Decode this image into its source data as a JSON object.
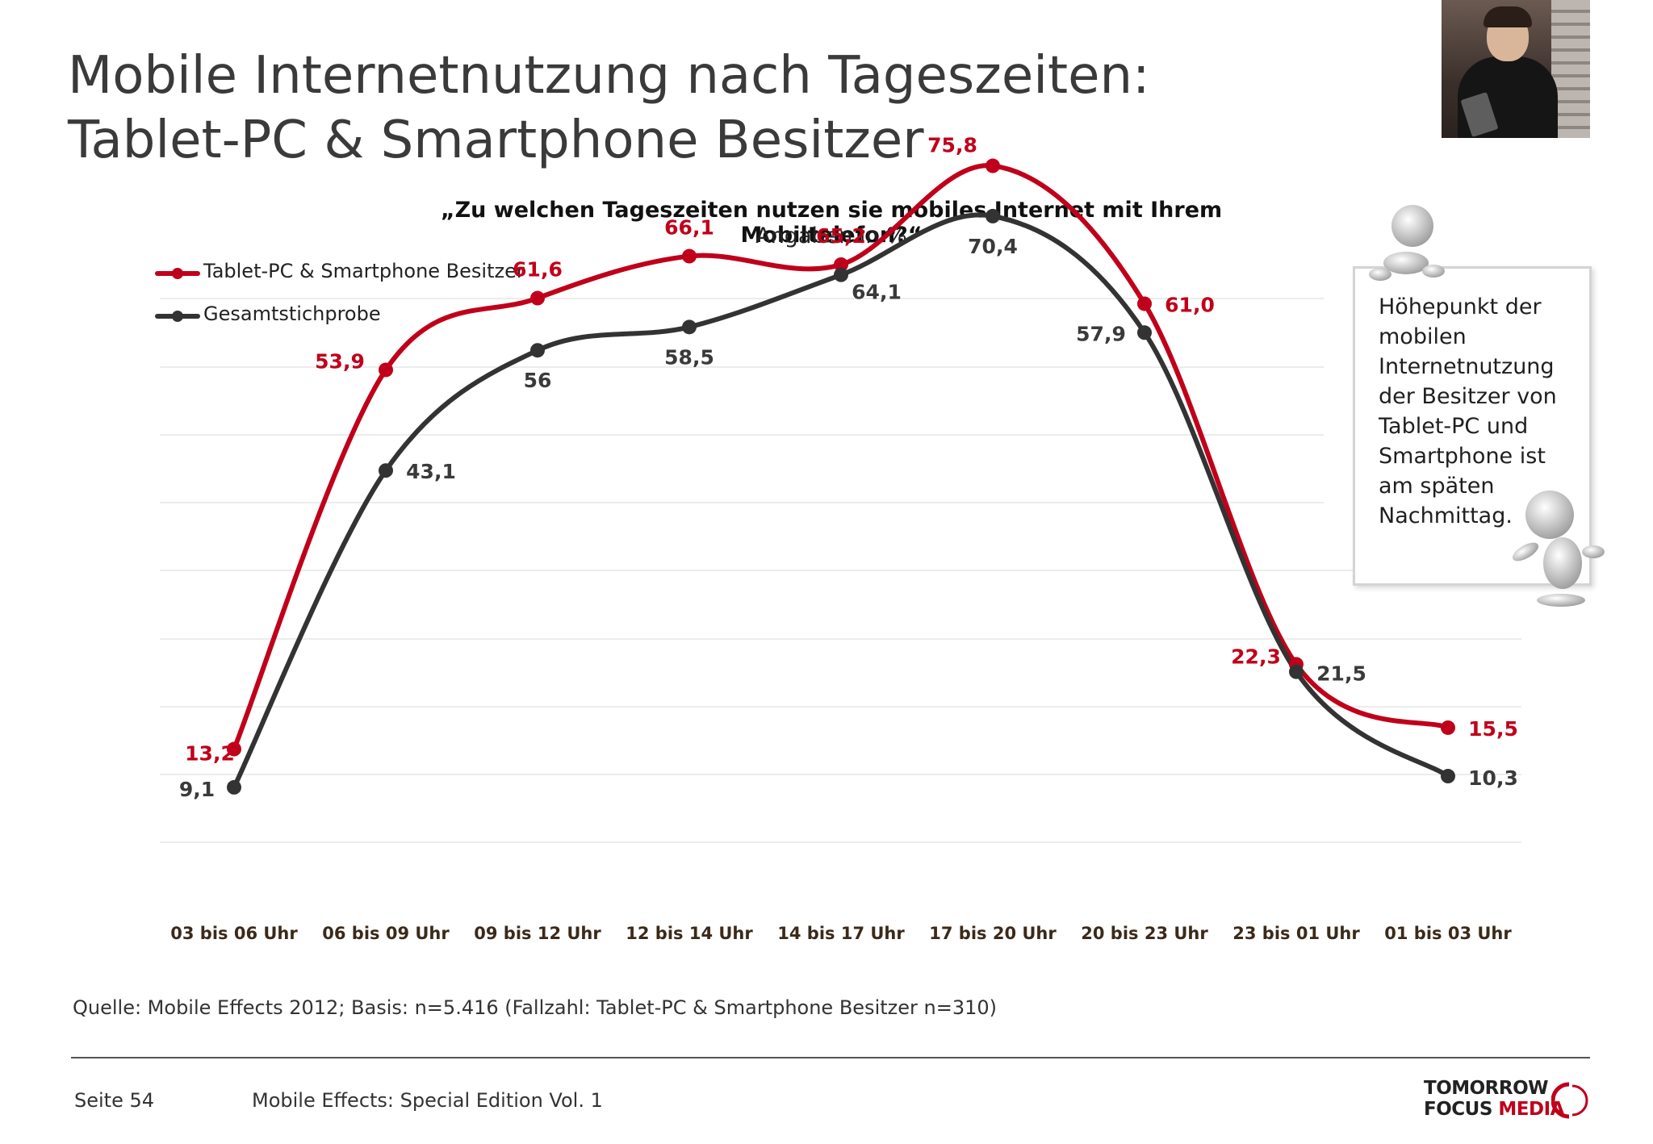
{
  "title_line1": "Mobile Internetnutzung nach Tageszeiten:",
  "title_line2": "Tablet-PC & Smartphone Besitzer",
  "callout": "Höhepunkt der mobilen Internetnutzung der Besitzer von Tablet-PC und Smartphone ist am späten Nachmittag.",
  "source": "Quelle: Mobile Effects 2012; Basis: n=5.416 (Fallzahl: Tablet-PC & Smartphone Besitzer n=310)",
  "footer": {
    "page": "Seite 54",
    "edition": "Mobile Effects: Special Edition Vol. 1",
    "logo_line1": "TOMORROW",
    "logo_line2a": "FOCUS ",
    "logo_line2b": "MEDIA"
  },
  "colors": {
    "red": "#c0001a",
    "dark": "#333333",
    "label_dark": "#3a3a3a",
    "category": "#3b2a1a",
    "grid": "#e6e6e6"
  },
  "icons": {
    "photo": "man-with-tablet-photo",
    "figure_top": "3d-figure-leaning-icon",
    "figure_bottom": "3d-figure-pointing-icon"
  },
  "chart_data": {
    "type": "line",
    "title": "„Zu welchen Tageszeiten nutzen sie mobiles Internet mit Ihrem Mobiltelefon?“",
    "subtitle": "Angaben in %",
    "categories": [
      "03 bis 06 Uhr",
      "06 bis 09 Uhr",
      "09 bis 12 Uhr",
      "12 bis 14 Uhr",
      "14 bis 17 Uhr",
      "17 bis 20 Uhr",
      "20 bis 23 Uhr",
      "23 bis 01 Uhr",
      "01 bis 03 Uhr"
    ],
    "series": [
      {
        "name": "Tablet-PC & Smartphone Besitzer",
        "values": [
          13.2,
          53.9,
          61.6,
          66.1,
          65.2,
          75.8,
          61.0,
          22.3,
          15.5
        ],
        "labels": [
          "13,2",
          "53,9",
          "61,6",
          "66,1",
          "65,2",
          "75,8",
          "61,0",
          "22,3",
          "15,5"
        ]
      },
      {
        "name": "Gesamtstichprobe",
        "values": [
          9.1,
          43.1,
          56,
          58.5,
          64.1,
          70.4,
          57.9,
          21.5,
          10.3
        ],
        "labels": [
          "9,1",
          "43,1",
          "56",
          "58,5",
          "64,1",
          "70,4",
          "57,9",
          "21,5",
          "10,3"
        ]
      }
    ],
    "ylim": [
      0,
      80
    ],
    "grid": true,
    "legend": "top-left",
    "smooth": true
  }
}
